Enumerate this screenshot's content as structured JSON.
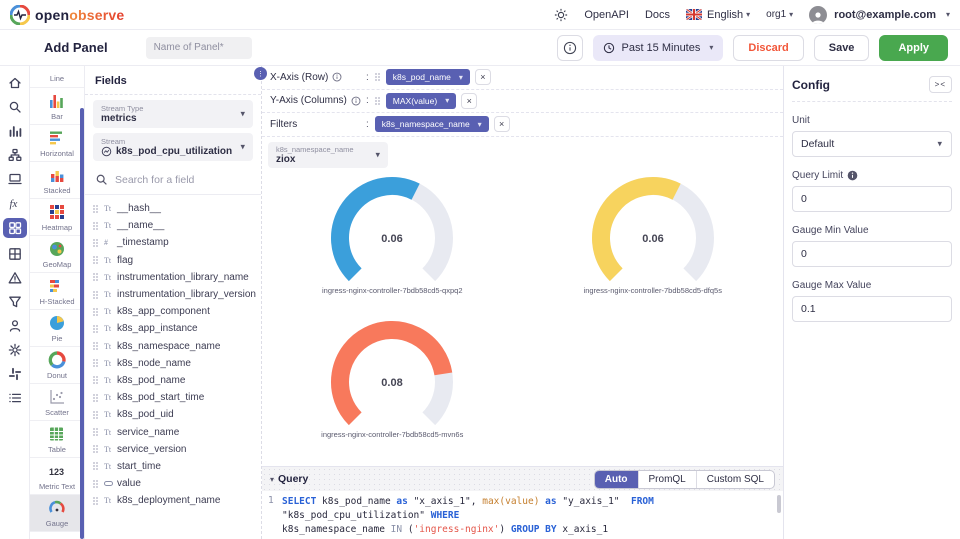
{
  "colors": {
    "primary": "#5960b2",
    "apply_green": "#49a84f",
    "discard_red": "#f2573a",
    "gauge_track": "#e8eaf1"
  },
  "topbar": {
    "logo_open": "open",
    "logo_observe": "observe",
    "openapi": "OpenAPI",
    "docs": "Docs",
    "language": "English",
    "org": "org1",
    "email": "root@example.com"
  },
  "panel_bar": {
    "title": "Add Panel",
    "name_placeholder": "Name of Panel*",
    "time_range": "Past 15 Minutes",
    "discard": "Discard",
    "save": "Save",
    "apply": "Apply"
  },
  "sidebar_icons": [
    "home",
    "search",
    "bar-chart",
    "share-nodes",
    "laptop",
    "function",
    "dashboard-grid",
    "table-grid",
    "warning-triangle",
    "filter-funnel",
    "user",
    "gear",
    "flow",
    "list"
  ],
  "sidebar_active_index": 6,
  "chart_types": {
    "selected": "Gauge",
    "items": [
      {
        "label": "Line",
        "icon": "line",
        "truncated": true
      },
      {
        "label": "Bar",
        "icon": "bar"
      },
      {
        "label": "Horizontal",
        "icon": "horizontal"
      },
      {
        "label": "Stacked",
        "icon": "stacked"
      },
      {
        "label": "Heatmap",
        "icon": "heatmap"
      },
      {
        "label": "GeoMap",
        "icon": "geomap"
      },
      {
        "label": "H-Stacked",
        "icon": "hstacked"
      },
      {
        "label": "Pie",
        "icon": "pie"
      },
      {
        "label": "Donut",
        "icon": "donut"
      },
      {
        "label": "Scatter",
        "icon": "scatter"
      },
      {
        "label": "Table",
        "icon": "table"
      },
      {
        "label": "Metric Text",
        "icon": "metric"
      },
      {
        "label": "Gauge",
        "icon": "gauge"
      }
    ]
  },
  "fields_panel": {
    "title": "Fields",
    "stream_type_label": "Stream Type",
    "stream_type_value": "metrics",
    "stream_label": "Stream",
    "stream_value": "k8s_pod_cpu_utilization",
    "search_placeholder": "Search for a field",
    "fields": [
      {
        "name": "__hash__",
        "type": "text"
      },
      {
        "name": "__name__",
        "type": "text"
      },
      {
        "name": "_timestamp",
        "type": "number"
      },
      {
        "name": "flag",
        "type": "text"
      },
      {
        "name": "instrumentation_library_name",
        "type": "text"
      },
      {
        "name": "instrumentation_library_version",
        "type": "text"
      },
      {
        "name": "k8s_app_component",
        "type": "text"
      },
      {
        "name": "k8s_app_instance",
        "type": "text"
      },
      {
        "name": "k8s_namespace_name",
        "type": "text"
      },
      {
        "name": "k8s_node_name",
        "type": "text"
      },
      {
        "name": "k8s_pod_name",
        "type": "text"
      },
      {
        "name": "k8s_pod_start_time",
        "type": "text"
      },
      {
        "name": "k8s_pod_uid",
        "type": "text"
      },
      {
        "name": "service_name",
        "type": "text"
      },
      {
        "name": "service_version",
        "type": "text"
      },
      {
        "name": "start_time",
        "type": "text"
      },
      {
        "name": "value",
        "type": "value"
      },
      {
        "name": "k8s_deployment_name",
        "type": "text"
      }
    ]
  },
  "layout_builder": {
    "x_label": "X-Axis (Row)",
    "x_chip": "k8s_pod_name",
    "y_label": "Y-Axis (Columns)",
    "y_chip": "MAX(value)",
    "filters_label": "Filters",
    "filters_chip": "k8s_namespace_name",
    "filter_field_label": "k8s_namespace_name",
    "filter_field_value": "ziox"
  },
  "chart_data": {
    "type": "gauge",
    "min": 0,
    "max": 0.1,
    "series": [
      {
        "label": "ingress-nginx-controller-7bdb58cd5-qxpq2",
        "value": 0.06,
        "color": "#3b9fdb"
      },
      {
        "label": "ingress-nginx-controller-7bdb58cd5-dfq5s",
        "value": 0.06,
        "color": "#f7d35e"
      },
      {
        "label": "ingress-nginx-controller-7bdb58cd5-mvn6s",
        "value": 0.08,
        "color": "#f8795c"
      }
    ]
  },
  "query_panel": {
    "title": "Query",
    "tabs": [
      "Auto",
      "PromQL",
      "Custom SQL"
    ],
    "active_tab": "Auto",
    "line_number": "1",
    "sql_segments": [
      {
        "t": "SELECT",
        "c": "kw"
      },
      {
        "t": " k8s_pod_name ",
        "c": "plain"
      },
      {
        "t": "as",
        "c": "kw"
      },
      {
        "t": " \"x_axis_1\", ",
        "c": "plain"
      },
      {
        "t": "max(value)",
        "c": "fn"
      },
      {
        "t": " ",
        "c": "plain"
      },
      {
        "t": "as",
        "c": "kw"
      },
      {
        "t": " \"y_axis_1\"  ",
        "c": "plain"
      },
      {
        "t": "FROM",
        "c": "kw"
      },
      {
        "t": " \"k8s_pod_cpu_utilization\" ",
        "c": "plain"
      },
      {
        "t": "WHERE",
        "c": "kw"
      },
      {
        "t": "\nk8s_namespace_name ",
        "c": "plain"
      },
      {
        "t": "IN",
        "c": "kw2"
      },
      {
        "t": " (",
        "c": "plain"
      },
      {
        "t": "'ingress-nginx'",
        "c": "str"
      },
      {
        "t": ") ",
        "c": "plain"
      },
      {
        "t": "GROUP BY",
        "c": "kw"
      },
      {
        "t": " x_axis_1",
        "c": "plain"
      }
    ]
  },
  "config_panel": {
    "title": "Config",
    "unit_label": "Unit",
    "unit_value": "Default",
    "query_limit_label": "Query Limit",
    "query_limit_value": "0",
    "gauge_min_label": "Gauge Min Value",
    "gauge_min_value": "0",
    "gauge_max_label": "Gauge Max Value",
    "gauge_max_value": "0.1"
  }
}
